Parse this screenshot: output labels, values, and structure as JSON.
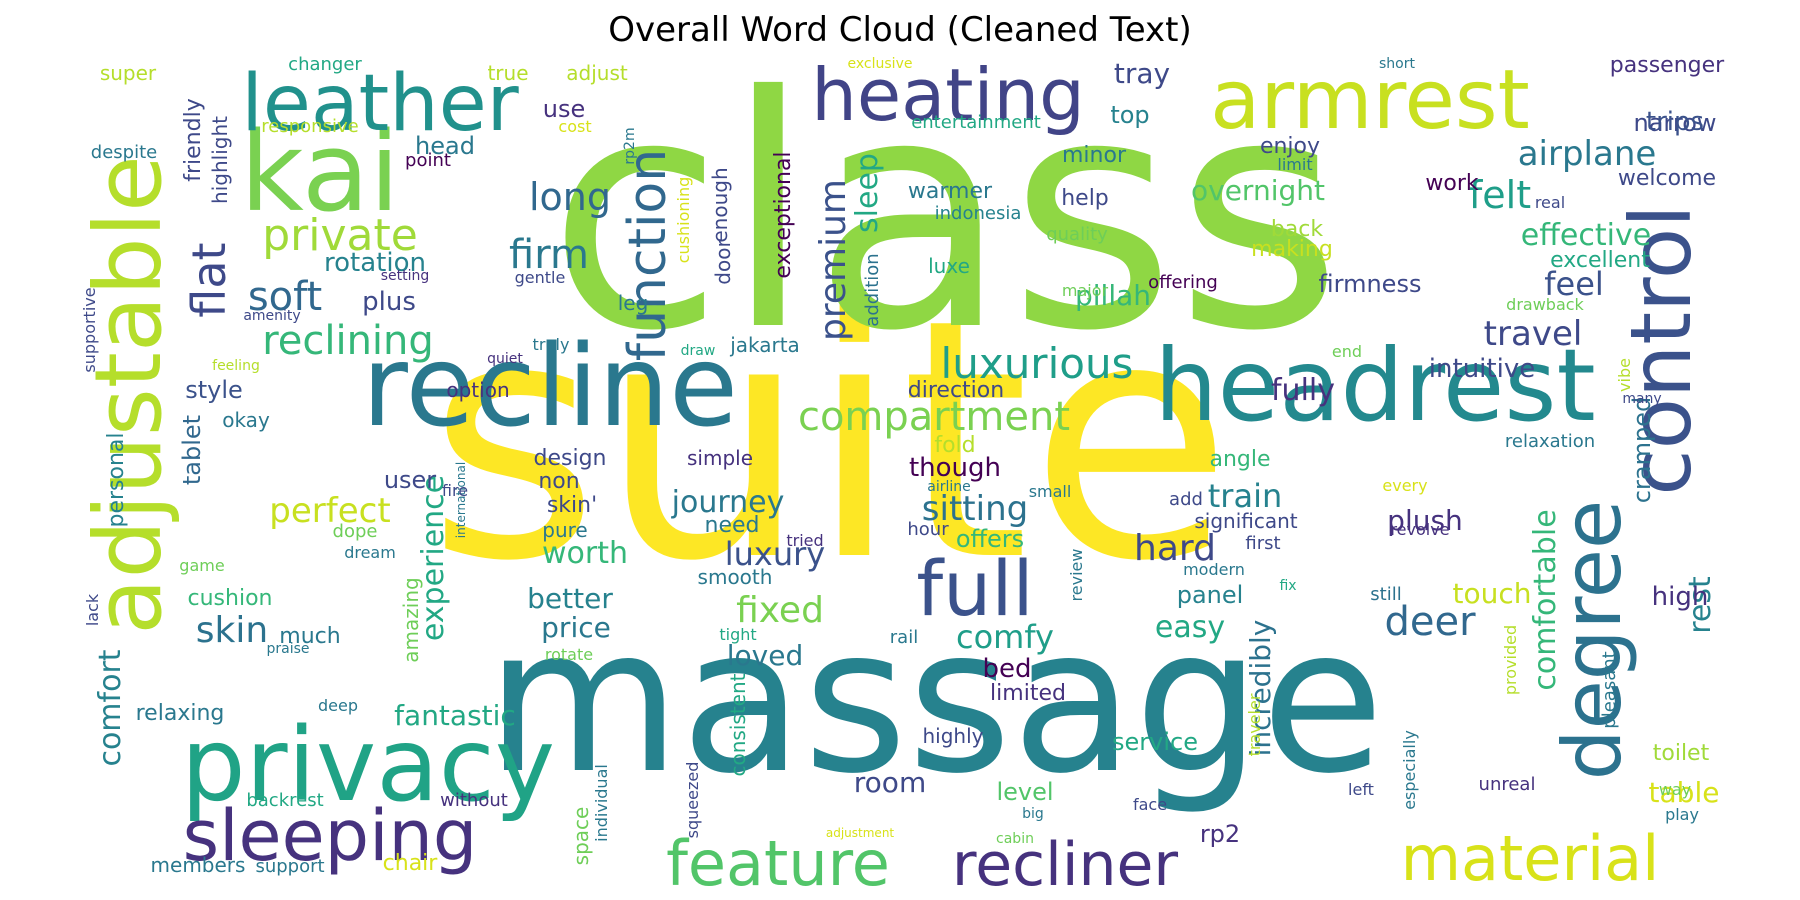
{
  "title": "Overall Word Cloud (Cleaned Text)",
  "palette": {
    "dark_purple": "#440154",
    "purple": "#482878",
    "indigo": "#3e4989",
    "blue": "#31688e",
    "teal": "#26828e",
    "green_teal": "#1f9e89",
    "green": "#35b779",
    "light_green": "#6ece58",
    "lime": "#b5de2b",
    "yellow": "#fde725"
  },
  "words": [
    {
      "text": "suite",
      "color": "#fde725"
    },
    {
      "text": "class",
      "color": "#8fd744"
    },
    {
      "text": "massage",
      "color": "#26828e"
    },
    {
      "text": "recline",
      "color": "#2a788e"
    },
    {
      "text": "headrest",
      "color": "#23898e"
    },
    {
      "text": "adjustable",
      "color": "#b5de2b"
    },
    {
      "text": "kai",
      "color": "#7ad151"
    },
    {
      "text": "privacy",
      "color": "#20a386"
    },
    {
      "text": "armrest",
      "color": "#c8e020"
    },
    {
      "text": "heating",
      "color": "#414487"
    },
    {
      "text": "leather",
      "color": "#21918c"
    },
    {
      "text": "control",
      "color": "#3b528b"
    },
    {
      "text": "degree",
      "color": "#2c728e"
    },
    {
      "text": "sleeping",
      "color": "#46327e"
    },
    {
      "text": "full",
      "color": "#3b528b"
    },
    {
      "text": "feature",
      "color": "#52c569"
    },
    {
      "text": "recliner",
      "color": "#46327e"
    },
    {
      "text": "material",
      "color": "#d8e219"
    },
    {
      "text": "function",
      "color": "#31688e"
    },
    {
      "text": "flat",
      "color": "#3e4989"
    },
    {
      "text": "private",
      "color": "#a0da39"
    },
    {
      "text": "soft",
      "color": "#31688e"
    },
    {
      "text": "reclining",
      "color": "#35b779"
    },
    {
      "text": "luxurious",
      "color": "#1f9e89"
    },
    {
      "text": "compartment",
      "color": "#7ad151"
    },
    {
      "text": "firm",
      "color": "#2a788e"
    },
    {
      "text": "long",
      "color": "#31688e"
    },
    {
      "text": "premium",
      "color": "#3b528b"
    },
    {
      "text": "sleep",
      "color": "#22a884"
    },
    {
      "text": "airplane",
      "color": "#2a788e"
    },
    {
      "text": "felt",
      "color": "#1f9e89"
    },
    {
      "text": "effective",
      "color": "#35b779"
    },
    {
      "text": "feel",
      "color": "#3b528b"
    },
    {
      "text": "travel",
      "color": "#3e4989"
    },
    {
      "text": "deer",
      "color": "#31688e"
    },
    {
      "text": "comfortable",
      "color": "#35b779"
    },
    {
      "text": "rest",
      "color": "#26828e"
    },
    {
      "text": "sitting",
      "color": "#2c728e"
    },
    {
      "text": "fully",
      "color": "#46327e"
    },
    {
      "text": "hard",
      "color": "#3e4989"
    },
    {
      "text": "train",
      "color": "#26828e"
    },
    {
      "text": "luxury",
      "color": "#3b528b"
    },
    {
      "text": "fixed",
      "color": "#7ad151"
    },
    {
      "text": "comfy",
      "color": "#1f9e89"
    },
    {
      "text": "experience",
      "color": "#22a884"
    },
    {
      "text": "perfect",
      "color": "#c8e020"
    },
    {
      "text": "skin",
      "color": "#2c728e"
    },
    {
      "text": "comfort",
      "color": "#26828e"
    },
    {
      "text": "journey",
      "color": "#2a788e"
    },
    {
      "text": "better",
      "color": "#26828e"
    },
    {
      "text": "worth",
      "color": "#35b779"
    },
    {
      "text": "price",
      "color": "#2a788e"
    },
    {
      "text": "loved",
      "color": "#2a788e"
    },
    {
      "text": "overnight",
      "color": "#52c569"
    },
    {
      "text": "pillah",
      "color": "#35b779"
    },
    {
      "text": "firmness",
      "color": "#3e4989"
    },
    {
      "text": "intuitive",
      "color": "#3e4989"
    },
    {
      "text": "plush",
      "color": "#46327e"
    },
    {
      "text": "cramped",
      "color": "#2c728e"
    },
    {
      "text": "high",
      "color": "#46327e"
    },
    {
      "text": "touch",
      "color": "#c8e020"
    },
    {
      "text": "easy",
      "color": "#22a884"
    },
    {
      "text": "panel",
      "color": "#26828e"
    },
    {
      "text": "incredibly",
      "color": "#2c728e"
    },
    {
      "text": "bed",
      "color": "#440154"
    },
    {
      "text": "limited",
      "color": "#46327e"
    },
    {
      "text": "fantastic",
      "color": "#22a884"
    },
    {
      "text": "service",
      "color": "#22a884"
    },
    {
      "text": "room",
      "color": "#3e4989"
    },
    {
      "text": "level",
      "color": "#52c569"
    },
    {
      "text": "rp2",
      "color": "#46327e"
    },
    {
      "text": "table",
      "color": "#d8e219"
    },
    {
      "text": "toilet",
      "color": "#a0da39"
    },
    {
      "text": "tray",
      "color": "#3e4989"
    },
    {
      "text": "top",
      "color": "#26828e"
    },
    {
      "text": "narrow",
      "color": "#3e4989"
    },
    {
      "text": "trips",
      "color": "#3b528b"
    },
    {
      "text": "passenger",
      "color": "#46327e"
    },
    {
      "text": "welcome",
      "color": "#3e4989"
    },
    {
      "text": "excellent",
      "color": "#22a884"
    },
    {
      "text": "enjoy",
      "color": "#3e4989"
    },
    {
      "text": "work",
      "color": "#440154"
    },
    {
      "text": "back",
      "color": "#a0da39"
    },
    {
      "text": "making",
      "color": "#c8e020"
    },
    {
      "text": "minor",
      "color": "#2a788e"
    },
    {
      "text": "help",
      "color": "#3e4989"
    },
    {
      "text": "warmer",
      "color": "#2a788e"
    },
    {
      "text": "indonesia",
      "color": "#26828e"
    },
    {
      "text": "use",
      "color": "#46327e"
    },
    {
      "text": "head",
      "color": "#2a788e"
    },
    {
      "text": "rotation",
      "color": "#26828e"
    },
    {
      "text": "plus",
      "color": "#3e4989"
    },
    {
      "text": "style",
      "color": "#3b528b"
    },
    {
      "text": "tablet",
      "color": "#31688e"
    },
    {
      "text": "personal",
      "color": "#26828e"
    },
    {
      "text": "user",
      "color": "#3e4989"
    },
    {
      "text": "cushion",
      "color": "#35b779"
    },
    {
      "text": "much",
      "color": "#2a788e"
    },
    {
      "text": "relaxing",
      "color": "#2a788e"
    },
    {
      "text": "amazing",
      "color": "#6ece58"
    },
    {
      "text": "design",
      "color": "#3e4989"
    },
    {
      "text": "non",
      "color": "#3e4989"
    },
    {
      "text": "skin'",
      "color": "#3e4989"
    },
    {
      "text": "pure",
      "color": "#2a788e"
    },
    {
      "text": "need",
      "color": "#2a788e"
    },
    {
      "text": "though",
      "color": "#440154"
    },
    {
      "text": "direction",
      "color": "#3e4989"
    },
    {
      "text": "fold",
      "color": "#b5de2b"
    },
    {
      "text": "angle",
      "color": "#35b779"
    },
    {
      "text": "significant",
      "color": "#3e4989"
    },
    {
      "text": "offers",
      "color": "#35b779"
    },
    {
      "text": "leg",
      "color": "#2a788e"
    },
    {
      "text": "enough",
      "color": "#3e4989"
    },
    {
      "text": "jakarta",
      "color": "#2a788e"
    },
    {
      "text": "exceptional",
      "color": "#440154"
    },
    {
      "text": "door",
      "color": "#3e4989"
    },
    {
      "text": "cushioning",
      "color": "#d8e219"
    },
    {
      "text": "gentle",
      "color": "#3e4989"
    },
    {
      "text": "addition",
      "color": "#2c728e"
    },
    {
      "text": "luxe",
      "color": "#22a884"
    },
    {
      "text": "quality",
      "color": "#6ece58"
    },
    {
      "text": "major",
      "color": "#6ece58"
    },
    {
      "text": "offering",
      "color": "#440154"
    },
    {
      "text": "entertainment",
      "color": "#22a884"
    },
    {
      "text": "limit",
      "color": "#2a788e"
    },
    {
      "text": "real",
      "color": "#3e4989"
    },
    {
      "text": "drawback",
      "color": "#6ece58"
    },
    {
      "text": "vibe",
      "color": "#b5de2b"
    },
    {
      "text": "many",
      "color": "#3e4989"
    },
    {
      "text": "relaxation",
      "color": "#2a788e"
    },
    {
      "text": "every",
      "color": "#d8e219"
    },
    {
      "text": "revolve",
      "color": "#46327e"
    },
    {
      "text": "first",
      "color": "#3e4989"
    },
    {
      "text": "modern",
      "color": "#2a788e"
    },
    {
      "text": "still",
      "color": "#2c728e"
    },
    {
      "text": "fix",
      "color": "#22a884"
    },
    {
      "text": "pleasant",
      "color": "#2a788e"
    },
    {
      "text": "provided",
      "color": "#b5de2b"
    },
    {
      "text": "traveler",
      "color": "#b5de2b"
    },
    {
      "text": "especially",
      "color": "#2a788e"
    },
    {
      "text": "unreal",
      "color": "#46327e"
    },
    {
      "text": "left",
      "color": "#3e4989"
    },
    {
      "text": "way",
      "color": "#6ece58"
    },
    {
      "text": "play",
      "color": "#2a788e"
    },
    {
      "text": "review",
      "color": "#2a788e"
    },
    {
      "text": "face",
      "color": "#3e4989"
    },
    {
      "text": "big",
      "color": "#2a788e"
    },
    {
      "text": "cabin",
      "color": "#6ece58"
    },
    {
      "text": "adjustment",
      "color": "#d8e219"
    },
    {
      "text": "highly",
      "color": "#3e4989"
    },
    {
      "text": "squeezed",
      "color": "#3e4989"
    },
    {
      "text": "individual",
      "color": "#2a788e"
    },
    {
      "text": "consistent",
      "color": "#22a884"
    },
    {
      "text": "space",
      "color": "#6ece58"
    },
    {
      "text": "hour",
      "color": "#3e4989"
    },
    {
      "text": "rail",
      "color": "#2a788e"
    },
    {
      "text": "tight",
      "color": "#22a884"
    },
    {
      "text": "smooth",
      "color": "#2a788e"
    },
    {
      "text": "rotate",
      "color": "#6ece58"
    },
    {
      "text": "tried",
      "color": "#46327e"
    },
    {
      "text": "small",
      "color": "#2a788e"
    },
    {
      "text": "airline",
      "color": "#2a788e"
    },
    {
      "text": "simple",
      "color": "#46327e"
    },
    {
      "text": "members",
      "color": "#2a788e"
    },
    {
      "text": "support",
      "color": "#2a788e"
    },
    {
      "text": "chair",
      "color": "#d8e219"
    },
    {
      "text": "backrest",
      "color": "#22a884"
    },
    {
      "text": "without",
      "color": "#46327e"
    },
    {
      "text": "deep",
      "color": "#2a788e"
    },
    {
      "text": "praise",
      "color": "#2a788e"
    },
    {
      "text": "game",
      "color": "#6ece58"
    },
    {
      "text": "lack",
      "color": "#3e4989"
    },
    {
      "text": "dope",
      "color": "#6ece58"
    },
    {
      "text": "dream",
      "color": "#2a788e"
    },
    {
      "text": "international",
      "color": "#2a788e"
    },
    {
      "text": "fire",
      "color": "#3e4989"
    },
    {
      "text": "okay",
      "color": "#2a788e"
    },
    {
      "text": "option",
      "color": "#46327e"
    },
    {
      "text": "quiet",
      "color": "#46327e"
    },
    {
      "text": "truly",
      "color": "#2a788e"
    },
    {
      "text": "draw",
      "color": "#22a884"
    },
    {
      "text": "end",
      "color": "#6ece58"
    },
    {
      "text": "feeling",
      "color": "#b5de2b"
    },
    {
      "text": "amenity",
      "color": "#3e4989"
    },
    {
      "text": "setting",
      "color": "#46327e"
    },
    {
      "text": "supportive",
      "color": "#3e4989"
    },
    {
      "text": "despite",
      "color": "#2a788e"
    },
    {
      "text": "responsive",
      "color": "#b5de2b"
    },
    {
      "text": "point",
      "color": "#440154"
    },
    {
      "text": "cost",
      "color": "#d8e219"
    },
    {
      "text": "rp2m",
      "color": "#2a788e"
    },
    {
      "text": "super",
      "color": "#b5de2b"
    },
    {
      "text": "changer",
      "color": "#22a884"
    },
    {
      "text": "true",
      "color": "#b5de2b"
    },
    {
      "text": "adjust",
      "color": "#b5de2b"
    },
    {
      "text": "exclusive",
      "color": "#d8e219"
    },
    {
      "text": "short",
      "color": "#2a788e"
    },
    {
      "text": "friendly",
      "color": "#3e4989"
    },
    {
      "text": "highlight",
      "color": "#3e4989"
    },
    {
      "text": "add",
      "color": "#3e4989"
    }
  ]
}
